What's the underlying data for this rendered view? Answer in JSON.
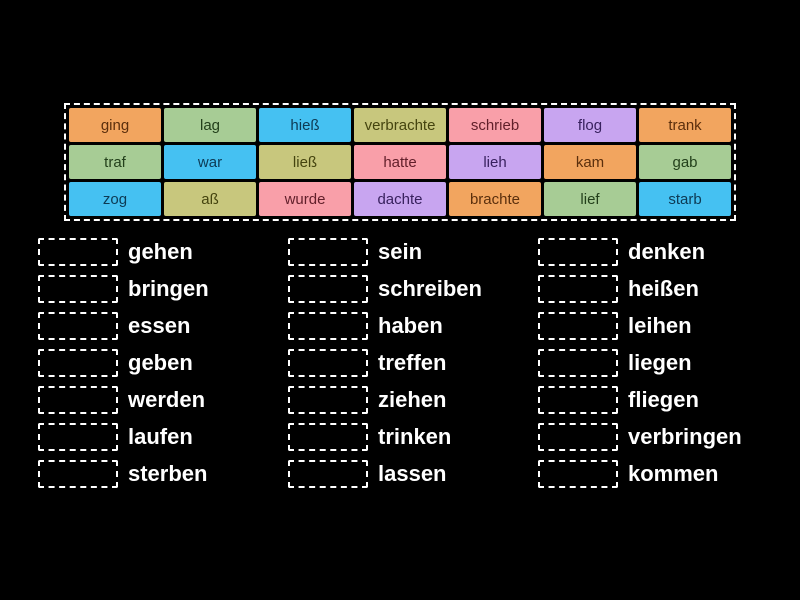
{
  "colors": {
    "background": "#000000",
    "dashed_border": "#FFFFFF",
    "label_text": "#FFFFFF"
  },
  "palette": {
    "orange": {
      "bg": "#F2A55F",
      "text": "#5B2F0D"
    },
    "green": {
      "bg": "#A7CC95",
      "text": "#23401B"
    },
    "blue": {
      "bg": "#45C1F2",
      "text": "#0D3A54"
    },
    "olive": {
      "bg": "#C8C77D",
      "text": "#45440F"
    },
    "pink": {
      "bg": "#F99FA9",
      "text": "#611F2A"
    },
    "purple": {
      "bg": "#C8A5F0",
      "text": "#38215E"
    }
  },
  "board": {
    "tiles": [
      {
        "label": "ging",
        "color": "orange"
      },
      {
        "label": "lag",
        "color": "green"
      },
      {
        "label": "hieß",
        "color": "blue"
      },
      {
        "label": "verbrachte",
        "color": "olive"
      },
      {
        "label": "schrieb",
        "color": "pink"
      },
      {
        "label": "flog",
        "color": "purple"
      },
      {
        "label": "trank",
        "color": "orange"
      },
      {
        "label": "traf",
        "color": "green"
      },
      {
        "label": "war",
        "color": "blue"
      },
      {
        "label": "ließ",
        "color": "olive"
      },
      {
        "label": "hatte",
        "color": "pink"
      },
      {
        "label": "lieh",
        "color": "purple"
      },
      {
        "label": "kam",
        "color": "orange"
      },
      {
        "label": "gab",
        "color": "green"
      },
      {
        "label": "zog",
        "color": "blue"
      },
      {
        "label": "aß",
        "color": "olive"
      },
      {
        "label": "wurde",
        "color": "pink"
      },
      {
        "label": "dachte",
        "color": "purple"
      },
      {
        "label": "brachte",
        "color": "orange"
      },
      {
        "label": "lief",
        "color": "green"
      },
      {
        "label": "starb",
        "color": "blue"
      }
    ]
  },
  "answers": {
    "columns": [
      {
        "items": [
          "gehen",
          "bringen",
          "essen",
          "geben",
          "werden",
          "laufen",
          "sterben"
        ]
      },
      {
        "items": [
          "sein",
          "schreiben",
          "haben",
          "treffen",
          "ziehen",
          "trinken",
          "lassen"
        ]
      },
      {
        "items": [
          "denken",
          "heißen",
          "leihen",
          "liegen",
          "fliegen",
          "verbringen",
          "kommen"
        ]
      }
    ]
  }
}
